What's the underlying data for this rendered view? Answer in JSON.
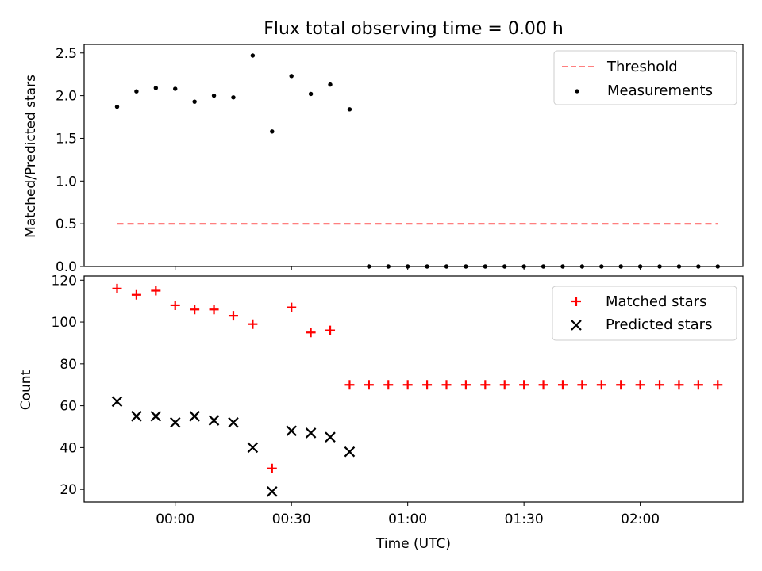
{
  "chart_data": [
    {
      "type": "scatter",
      "title": "Flux total observing time = 0.00 h",
      "xlabel": "",
      "ylabel": "Matched/Predicted stars",
      "ylim": [
        0,
        2.6
      ],
      "y_ticks": [
        "0.0",
        "0.5",
        "1.0",
        "1.5",
        "2.0",
        "2.5"
      ],
      "y_tick_values": [
        0,
        0.5,
        1.0,
        1.5,
        2.0,
        2.5
      ],
      "x_tick_values": [
        "00:00",
        "00:30",
        "01:00",
        "01:30",
        "02:00"
      ],
      "legend": {
        "placement": "top-right",
        "threshold_label": "Threshold",
        "measurements_label": "Measurements"
      },
      "threshold": {
        "name": "Threshold",
        "value": 0.5,
        "x_range": [
          "23:45",
          "02:20"
        ],
        "color": "#ff7f7f",
        "style": "dashed"
      },
      "series": [
        {
          "name": "Measurements",
          "color": "#000000",
          "x": [
            "23:45",
            "23:50",
            "23:55",
            "00:00",
            "00:05",
            "00:10",
            "00:15",
            "00:20",
            "00:25",
            "00:30",
            "00:35",
            "00:40",
            "00:45",
            "00:50",
            "00:55",
            "01:00",
            "01:05",
            "01:10",
            "01:15",
            "01:20",
            "01:25",
            "01:30",
            "01:35",
            "01:40",
            "01:45",
            "01:50",
            "01:55",
            "02:00",
            "02:05",
            "02:10",
            "02:15",
            "02:20"
          ],
          "y": [
            1.87,
            2.05,
            2.09,
            2.08,
            1.93,
            2.0,
            1.98,
            2.47,
            1.58,
            2.23,
            2.02,
            2.13,
            1.84,
            0,
            0,
            0,
            0,
            0,
            0,
            0,
            0,
            0,
            0,
            0,
            0,
            0,
            0,
            0,
            0,
            0,
            0,
            0
          ]
        }
      ]
    },
    {
      "type": "scatter",
      "title": "",
      "xlabel": "Time (UTC)",
      "ylabel": "Count",
      "ylim": [
        14,
        122
      ],
      "y_ticks": [
        "20",
        "40",
        "60",
        "80",
        "100",
        "120"
      ],
      "y_tick_values": [
        20,
        40,
        60,
        80,
        100,
        120
      ],
      "x_ticks": [
        "00:00",
        "00:30",
        "01:00",
        "01:30",
        "02:00"
      ],
      "legend": {
        "placement": "top-right",
        "matched_label": "Matched stars",
        "predicted_label": "Predicted stars"
      },
      "series": [
        {
          "name": "Matched stars",
          "marker": "plus",
          "color": "#ff0000",
          "x": [
            "23:45",
            "23:50",
            "23:55",
            "00:00",
            "00:05",
            "00:10",
            "00:15",
            "00:20",
            "00:25",
            "00:30",
            "00:35",
            "00:40",
            "00:45",
            "00:50",
            "00:55",
            "01:00",
            "01:05",
            "01:10",
            "01:15",
            "01:20",
            "01:25",
            "01:30",
            "01:35",
            "01:40",
            "01:45",
            "01:50",
            "01:55",
            "02:00",
            "02:05",
            "02:10",
            "02:15",
            "02:20"
          ],
          "y": [
            116,
            113,
            115,
            108,
            106,
            106,
            103,
            99,
            30,
            107,
            95,
            96,
            70,
            70,
            70,
            70,
            70,
            70,
            70,
            70,
            70,
            70,
            70,
            70,
            70,
            70,
            70,
            70,
            70,
            70,
            70,
            70
          ]
        },
        {
          "name": "Predicted stars",
          "marker": "x",
          "color": "#000000",
          "x": [
            "23:45",
            "23:50",
            "23:55",
            "00:00",
            "00:05",
            "00:10",
            "00:15",
            "00:20",
            "00:25",
            "00:30",
            "00:35",
            "00:40",
            "00:45"
          ],
          "y": [
            62,
            55,
            55,
            52,
            55,
            53,
            52,
            40,
            19,
            48,
            47,
            45,
            38
          ]
        }
      ]
    }
  ]
}
